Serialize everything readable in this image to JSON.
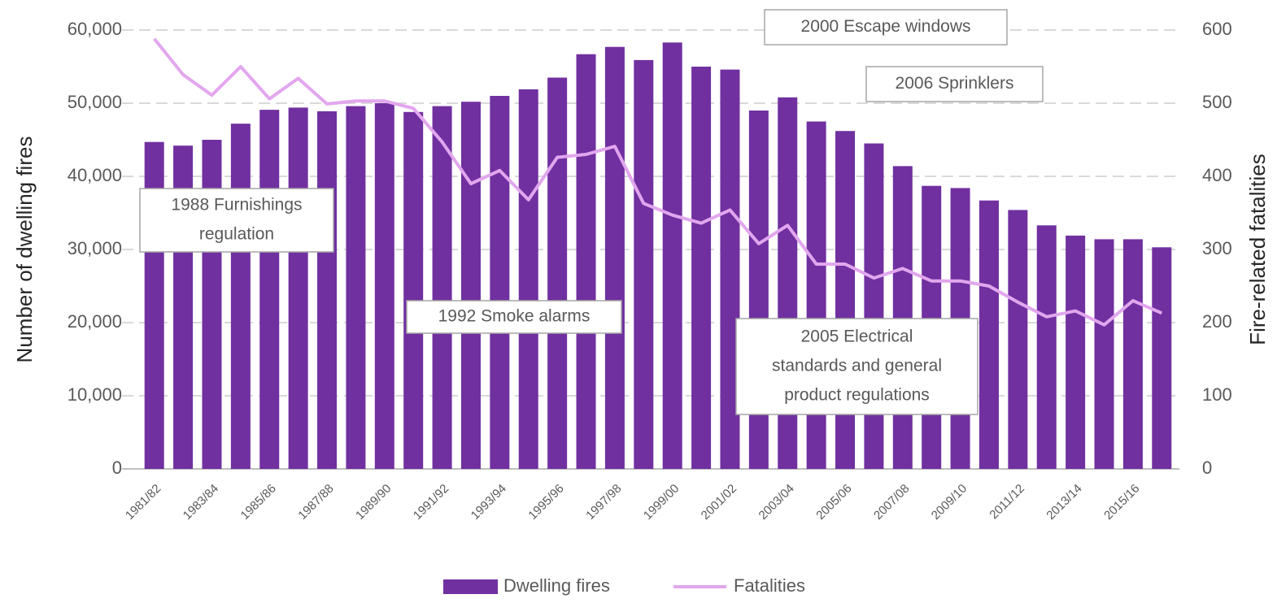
{
  "chart_data": {
    "type": "bar_line",
    "y_label": "Number of dwelling fires",
    "y2_label": "Fire-related fatalities",
    "categories": [
      "1981/82",
      null,
      "1983/84",
      null,
      "1985/86",
      null,
      "1987/88",
      null,
      "1989/90",
      null,
      "1991/92",
      null,
      "1993/94",
      null,
      "1995/96",
      null,
      "1997/98",
      null,
      "1999/00",
      null,
      "2001/02",
      null,
      "2003/04",
      null,
      "2005/06",
      null,
      "2007/08",
      null,
      "2009/10",
      null,
      "2011/12",
      null,
      "2013/14",
      null,
      "2015/16",
      null
    ],
    "series": [
      {
        "name": "Dwelling fires",
        "type": "bar",
        "axis": "y",
        "color": "#7030a0",
        "values": [
          44700,
          44200,
          45000,
          47200,
          49100,
          49400,
          48900,
          49600,
          50000,
          48800,
          49600,
          50200,
          51000,
          51900,
          53500,
          56700,
          57700,
          55900,
          58300,
          55000,
          54600,
          49000,
          50800,
          47500,
          46200,
          44500,
          41400,
          38700,
          38400,
          36700,
          35400,
          33300,
          31900,
          31400,
          31400,
          30300
        ]
      },
      {
        "name": "Fatalities",
        "type": "line",
        "axis": "y2",
        "color": "#e2a6ee",
        "values": [
          588,
          539,
          511,
          550,
          506,
          534,
          499,
          503,
          503,
          493,
          447,
          390,
          408,
          368,
          426,
          430,
          441,
          363,
          347,
          336,
          354,
          308,
          333,
          280,
          280,
          261,
          274,
          257,
          257,
          250,
          228,
          208,
          216,
          197,
          230,
          213
        ]
      }
    ],
    "ylim": [
      0,
      60000
    ],
    "yticks": [
      0,
      {
        "value": 10000,
        "label": "10,000"
      },
      {
        "value": 20000,
        "label": "20,000"
      },
      {
        "value": 30000,
        "label": "30,000"
      },
      {
        "value": 40000,
        "label": "40,000"
      },
      {
        "value": 50000,
        "label": "50,000"
      },
      {
        "value": 60000,
        "label": "60,000"
      }
    ],
    "y2lim": [
      0,
      600
    ],
    "y2ticks": [
      0,
      100,
      200,
      300,
      400,
      500,
      600
    ],
    "grid": true,
    "legend": "bottom",
    "annotations": [
      [
        "2000 Escape windows"
      ],
      [
        "2006 Sprinklers"
      ],
      [
        "1988 Furnishings",
        "regulation"
      ],
      [
        "1992 Smoke alarms"
      ],
      [
        "2005 Electrical",
        "standards and general",
        "product regulations"
      ]
    ]
  }
}
